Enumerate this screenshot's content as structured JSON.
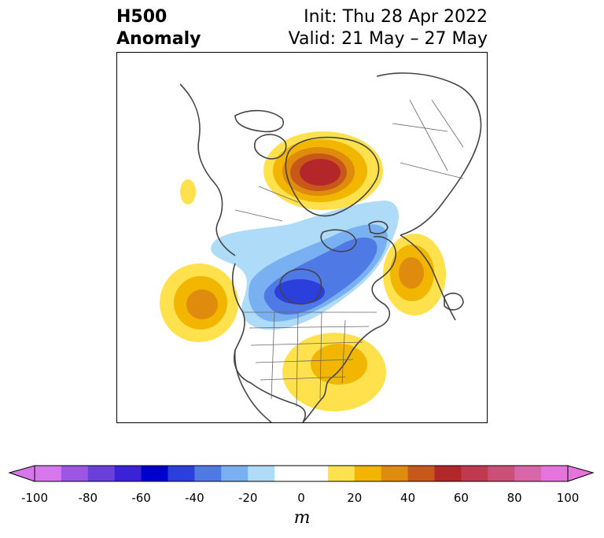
{
  "title": {
    "left_line1": "H500",
    "left_line2": "Anomaly",
    "right_line1": "Init: Thu 28 Apr 2022",
    "right_line2": "Valid: 21 May – 27 May"
  },
  "colorbar": {
    "unit": "m",
    "min": -100,
    "max": 100,
    "step": 10,
    "tick_labels": [
      "-100",
      "-80",
      "-60",
      "-40",
      "-20",
      "0",
      "20",
      "40",
      "60",
      "80",
      "100"
    ],
    "tick_values": [
      -100,
      -80,
      -60,
      -40,
      -20,
      0,
      20,
      40,
      60,
      80,
      100
    ],
    "colors": [
      "#d678ec",
      "#9c55e4",
      "#6a3fdc",
      "#3b22d8",
      "#0000cc",
      "#2a3fdc",
      "#4f7ae6",
      "#79b0f2",
      "#aedbf8",
      "#ffffff",
      "#ffe04d",
      "#f2b500",
      "#de8b0e",
      "#c8581a",
      "#b3262a",
      "#c0394f",
      "#cc4f77",
      "#d866a8",
      "#e674dc"
    ],
    "extend": "both"
  },
  "map": {
    "projection": "polar stereographic",
    "region": "North America / North Atlantic",
    "anomalies": [
      {
        "name": "Greenland / Baffin high",
        "value": 60
      },
      {
        "name": "Hudson Bay low",
        "value": -50
      },
      {
        "name": "Gulf of Alaska high",
        "value": 40
      },
      {
        "name": "North Atlantic high",
        "value": 40
      },
      {
        "name": "Eastern US high",
        "value": 30
      }
    ]
  }
}
